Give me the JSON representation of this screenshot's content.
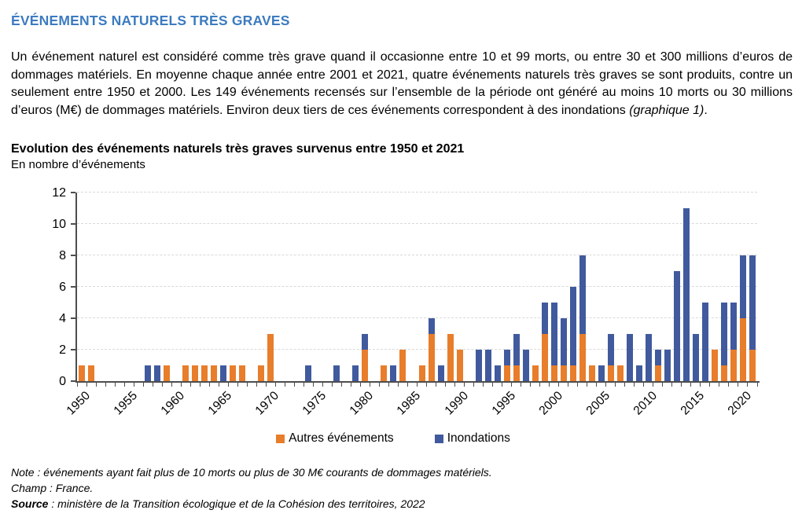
{
  "header": {
    "section_title": "ÉVÉNEMENTS NATURELS TRÈS GRAVES",
    "section_title_color": "#3c7bc0"
  },
  "intro": {
    "text": "Un événement naturel est considéré comme très grave quand il occasionne entre 10 et 99 morts, ou entre 30 et 300 millions d’euros de dommages matériels. En moyenne chaque année entre 2001 et 2021, quatre événements naturels très graves se sont produits, contre un seulement entre 1950 et 2000. Les 149 événements recensés sur l’ensemble de la période ont généré au moins 10 morts ou 30 millions d’euros (M€) de dommages matériels. Environ deux tiers de ces événements correspondent à des inondations ",
    "italic": "(graphique 1)",
    "period": "."
  },
  "chart": {
    "title": "Evolution des événements naturels très graves survenus entre 1950 et 2021",
    "subtitle": "En nombre d’événements"
  },
  "chart_data": {
    "type": "bar",
    "stacked": true,
    "title": "Evolution des événements naturels très graves survenus entre 1950 et 2021",
    "ylabel": "En nombre d’événements",
    "xlabel": "",
    "ylim": [
      0,
      12
    ],
    "yticks": [
      0,
      2,
      4,
      6,
      8,
      10,
      12
    ],
    "grid": "horizontal-dashed",
    "legend_position": "bottom",
    "axis_color": "#4d4d4d",
    "grid_color": "#d9d9d9",
    "x": [
      1950,
      1951,
      1952,
      1953,
      1954,
      1955,
      1956,
      1957,
      1958,
      1959,
      1960,
      1961,
      1962,
      1963,
      1964,
      1965,
      1966,
      1967,
      1968,
      1969,
      1970,
      1971,
      1972,
      1973,
      1974,
      1975,
      1976,
      1977,
      1978,
      1979,
      1980,
      1981,
      1982,
      1983,
      1984,
      1985,
      1986,
      1987,
      1988,
      1989,
      1990,
      1991,
      1992,
      1993,
      1994,
      1995,
      1996,
      1997,
      1998,
      1999,
      2000,
      2001,
      2002,
      2003,
      2004,
      2005,
      2006,
      2007,
      2008,
      2009,
      2010,
      2011,
      2012,
      2013,
      2014,
      2015,
      2016,
      2017,
      2018,
      2019,
      2020,
      2021
    ],
    "xtick_labels": [
      "1950",
      "1955",
      "1960",
      "1965",
      "1970",
      "1975",
      "1980",
      "1985",
      "1990",
      "1995",
      "2000",
      "2005",
      "2010",
      "2015",
      "2020"
    ],
    "series": [
      {
        "name": "Autres événements",
        "color": "#e87d2b",
        "values": [
          1,
          1,
          0,
          0,
          0,
          0,
          0,
          0,
          0,
          1,
          0,
          1,
          1,
          1,
          1,
          0,
          1,
          1,
          0,
          1,
          3,
          0,
          0,
          0,
          0,
          0,
          0,
          0,
          0,
          0,
          2,
          0,
          1,
          0,
          2,
          0,
          1,
          3,
          0,
          3,
          2,
          0,
          0,
          0,
          0,
          1,
          1,
          0,
          1,
          3,
          1,
          1,
          1,
          3,
          1,
          0,
          1,
          1,
          0,
          0,
          0,
          1,
          0,
          0,
          0,
          0,
          0,
          2,
          1,
          2,
          4,
          2
        ]
      },
      {
        "name": "Inondations",
        "color": "#405a9d",
        "values": [
          0,
          0,
          0,
          0,
          0,
          0,
          0,
          1,
          1,
          0,
          0,
          0,
          0,
          0,
          0,
          1,
          0,
          0,
          0,
          0,
          0,
          0,
          0,
          0,
          1,
          0,
          0,
          1,
          0,
          1,
          1,
          0,
          0,
          1,
          0,
          0,
          0,
          1,
          1,
          0,
          0,
          0,
          2,
          2,
          1,
          1,
          2,
          2,
          0,
          2,
          4,
          3,
          5,
          5,
          0,
          1,
          2,
          0,
          3,
          1,
          3,
          1,
          2,
          7,
          11,
          3,
          5,
          0,
          4,
          3,
          4,
          6
        ]
      }
    ]
  },
  "notes": {
    "note": "Note : événements ayant fait plus de 10 morts ou plus de 30 M€ courants de dommages matériels.",
    "champ": "Champ : France.",
    "source_label": "Source",
    "source_rest": " : ministère de la Transition écologique et de la Cohésion des territoires, 2022"
  }
}
